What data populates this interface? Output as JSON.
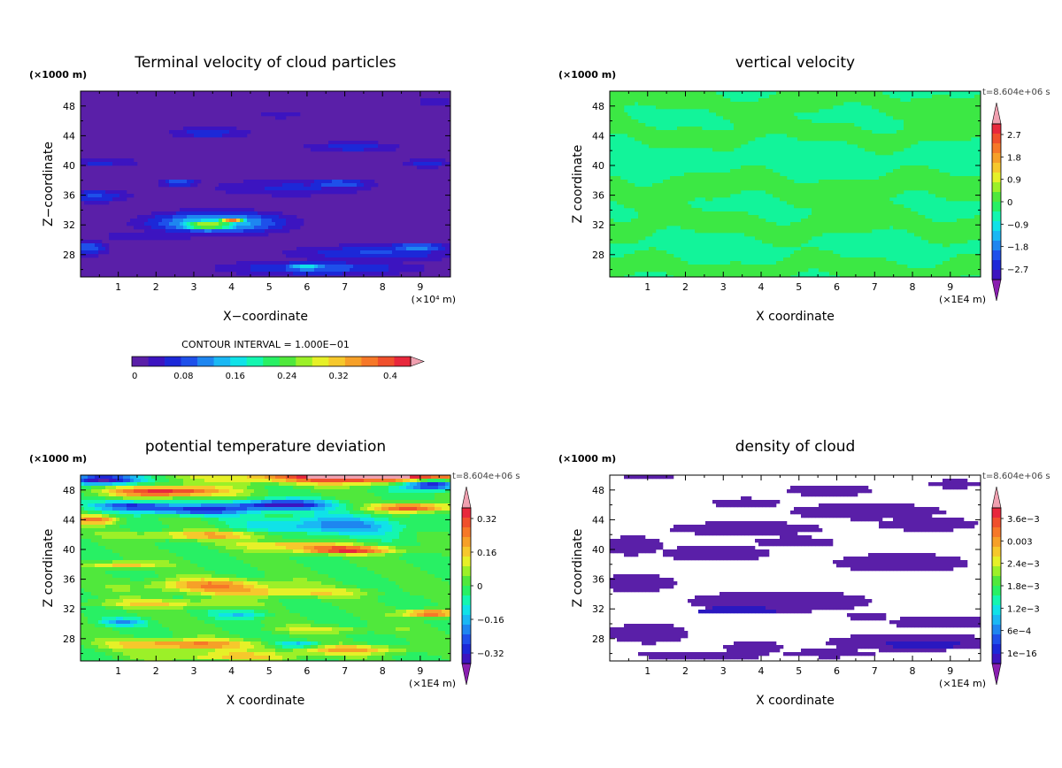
{
  "chart_data": [
    {
      "type": "heatmap",
      "title": "Terminal velocity of cloud particles",
      "xlabel": "X−coordinate",
      "ylabel": "Z−coordinate",
      "x_units": "(×10⁴ m)",
      "y_units": "(×1000 m)",
      "xlim": [
        0,
        9.8
      ],
      "ylim": [
        25,
        50
      ],
      "x_ticks": [
        1,
        2,
        3,
        4,
        5,
        6,
        7,
        8,
        9
      ],
      "y_ticks": [
        28,
        32,
        36,
        40,
        44,
        48
      ],
      "contour_interval_label": "CONTOUR INTERVAL = 1.000E−01",
      "colorbar_labels": [
        "0",
        "0.08",
        "0.16",
        "0.24",
        "0.32",
        "0.4"
      ],
      "colorbar_range": [
        0,
        0.4
      ],
      "background_value": 0,
      "features": [
        {
          "x": 3.6,
          "z": 32.3,
          "rx": 1.7,
          "rz": 1.4,
          "v": 0.15
        },
        {
          "x": 3.4,
          "z": 32.0,
          "rx": 0.9,
          "rz": 0.8,
          "v": 0.25
        },
        {
          "x": 4.0,
          "z": 32.6,
          "rx": 0.4,
          "rz": 0.4,
          "v": 0.33
        },
        {
          "x": 1.8,
          "z": 30.5,
          "rx": 1.5,
          "rz": 0.9,
          "v": 0.04
        },
        {
          "x": 7.8,
          "z": 28.2,
          "rx": 2.3,
          "rz": 1.1,
          "v": 0.07
        },
        {
          "x": 8.9,
          "z": 29.0,
          "rx": 0.8,
          "rz": 0.5,
          "v": 0.12
        },
        {
          "x": 6.3,
          "z": 26.2,
          "rx": 2.5,
          "rz": 1.0,
          "v": 0.08
        },
        {
          "x": 6.0,
          "z": 26.3,
          "rx": 0.6,
          "rz": 0.5,
          "v": 0.16
        },
        {
          "x": 0.2,
          "z": 28.9,
          "rx": 0.5,
          "rz": 1.0,
          "v": 0.09
        },
        {
          "x": 0.4,
          "z": 35.9,
          "rx": 0.9,
          "rz": 0.9,
          "v": 0.07
        },
        {
          "x": 5.6,
          "z": 37.0,
          "rx": 2.3,
          "rz": 1.2,
          "v": 0.05
        },
        {
          "x": 6.8,
          "z": 37.5,
          "rx": 0.9,
          "rz": 0.7,
          "v": 0.09
        },
        {
          "x": 2.6,
          "z": 37.7,
          "rx": 0.5,
          "rz": 0.5,
          "v": 0.09
        },
        {
          "x": 0.5,
          "z": 40.4,
          "rx": 1.2,
          "rz": 0.7,
          "v": 0.05
        },
        {
          "x": 9.2,
          "z": 40.3,
          "rx": 0.7,
          "rz": 0.6,
          "v": 0.06
        },
        {
          "x": 7.2,
          "z": 42.5,
          "rx": 1.3,
          "rz": 0.7,
          "v": 0.06
        },
        {
          "x": 3.4,
          "z": 44.4,
          "rx": 1.1,
          "rz": 0.8,
          "v": 0.06
        },
        {
          "x": 5.3,
          "z": 46.8,
          "rx": 0.7,
          "rz": 0.5,
          "v": 0.04
        },
        {
          "x": 9.4,
          "z": 48.6,
          "rx": 0.5,
          "rz": 0.5,
          "v": 0.05
        }
      ]
    },
    {
      "type": "heatmap",
      "title": "vertical velocity",
      "xlabel": "X coordinate",
      "ylabel": "Z coordinate",
      "x_units": "(×1E4 m)",
      "y_units": "(×1000 m)",
      "time_label": "t=8.604e+06 s",
      "xlim": [
        0,
        9.8
      ],
      "ylim": [
        25,
        50
      ],
      "x_ticks": [
        1,
        2,
        3,
        4,
        5,
        6,
        7,
        8,
        9
      ],
      "y_ticks": [
        28,
        32,
        36,
        40,
        44,
        48
      ],
      "colorbar_labels": [
        "2.7",
        "1.8",
        "0.9",
        "0",
        "−0.9",
        "−1.8",
        "−2.7"
      ],
      "colorbar_range": [
        -3.6,
        3.6
      ],
      "bands": [
        {
          "z": 48.5,
          "v": 0.4
        },
        {
          "z": 44.3,
          "v": 0.4
        },
        {
          "z": 37.0,
          "v": 0.6
        },
        {
          "z": 32.0,
          "v": 0.5
        },
        {
          "z": 26.0,
          "v": 0.45
        }
      ]
    },
    {
      "type": "heatmap",
      "title": "potential temperature deviation",
      "xlabel": "X coordinate",
      "ylabel": "Z coordinate",
      "x_units": "(×1E4 m)",
      "y_units": "(×1000 m)",
      "time_label": "t=8.604e+06 s",
      "xlim": [
        0,
        9.8
      ],
      "ylim": [
        25,
        50
      ],
      "x_ticks": [
        1,
        2,
        3,
        4,
        5,
        6,
        7,
        8,
        9
      ],
      "y_ticks": [
        28,
        32,
        36,
        40,
        44,
        48
      ],
      "colorbar_labels": [
        "0.32",
        "0.16",
        "0",
        "−0.16",
        "−0.32"
      ],
      "colorbar_range": [
        -0.48,
        0.48
      ],
      "features": [
        {
          "x": 7.8,
          "z": 49.8,
          "rx": 3.5,
          "rz": 0.9,
          "v": 0.5
        },
        {
          "x": 0.6,
          "z": 49.4,
          "rx": 0.9,
          "rz": 0.7,
          "v": -0.5
        },
        {
          "x": 9.3,
          "z": 48.8,
          "rx": 0.8,
          "rz": 0.8,
          "v": -0.5
        },
        {
          "x": 2.3,
          "z": 47.8,
          "rx": 1.5,
          "rz": 0.7,
          "v": 0.42
        },
        {
          "x": 5.3,
          "z": 46.0,
          "rx": 1.3,
          "rz": 0.7,
          "v": -0.42
        },
        {
          "x": 1.4,
          "z": 45.9,
          "rx": 1.0,
          "rz": 0.6,
          "v": -0.3
        },
        {
          "x": 3.0,
          "z": 45.3,
          "rx": 1.5,
          "rz": 0.7,
          "v": -0.32
        },
        {
          "x": 8.8,
          "z": 45.6,
          "rx": 1.0,
          "rz": 0.6,
          "v": 0.38
        },
        {
          "x": 0.4,
          "z": 44.0,
          "rx": 0.6,
          "rz": 0.6,
          "v": 0.3
        },
        {
          "x": 3.5,
          "z": 41.9,
          "rx": 2.0,
          "rz": 0.6,
          "v": 0.22
        },
        {
          "x": 6.6,
          "z": 43.2,
          "rx": 2.0,
          "rz": 1.4,
          "v": -0.24
        },
        {
          "x": 7.0,
          "z": 39.9,
          "rx": 1.4,
          "rz": 0.5,
          "v": 0.38
        },
        {
          "x": 5.6,
          "z": 40.6,
          "rx": 1.4,
          "rz": 0.5,
          "v": 0.22
        },
        {
          "x": 1.1,
          "z": 37.9,
          "rx": 0.9,
          "rz": 0.5,
          "v": 0.22
        },
        {
          "x": 3.5,
          "z": 35.2,
          "rx": 1.7,
          "rz": 0.9,
          "v": 0.25
        },
        {
          "x": 5.4,
          "z": 34.2,
          "rx": 2.2,
          "rz": 0.6,
          "v": 0.18
        },
        {
          "x": 2.2,
          "z": 32.7,
          "rx": 2.0,
          "rz": 0.6,
          "v": 0.16
        },
        {
          "x": 9.3,
          "z": 31.4,
          "rx": 0.7,
          "rz": 0.5,
          "v": 0.38
        },
        {
          "x": 4.3,
          "z": 31.3,
          "rx": 0.7,
          "rz": 0.6,
          "v": -0.16
        },
        {
          "x": 1.1,
          "z": 30.2,
          "rx": 0.6,
          "rz": 0.5,
          "v": -0.2
        },
        {
          "x": 6.5,
          "z": 29.2,
          "rx": 1.5,
          "rz": 0.5,
          "v": 0.12
        },
        {
          "x": 2.7,
          "z": 27.2,
          "rx": 1.8,
          "rz": 0.7,
          "v": 0.3
        },
        {
          "x": 7.1,
          "z": 26.5,
          "rx": 1.6,
          "rz": 0.6,
          "v": 0.22
        },
        {
          "x": 3.9,
          "z": 25.6,
          "rx": 2.0,
          "rz": 0.6,
          "v": 0.18
        },
        {
          "x": 5.8,
          "z": 27.2,
          "rx": 0.6,
          "rz": 0.5,
          "v": -0.2
        }
      ]
    },
    {
      "type": "heatmap",
      "title": "density of cloud",
      "xlabel": "X coordinate",
      "ylabel": "Z coordinate",
      "x_units": "(×1E4 m)",
      "y_units": "(×1000 m)",
      "time_label": "t=8.604e+06 s",
      "xlim": [
        0,
        9.8
      ],
      "ylim": [
        25,
        50
      ],
      "x_ticks": [
        1,
        2,
        3,
        4,
        5,
        6,
        7,
        8,
        9
      ],
      "y_ticks": [
        28,
        32,
        36,
        40,
        44,
        48
      ],
      "colorbar_labels": [
        "3.6e−3",
        "0.003",
        "2.4e−3",
        "1.8e−3",
        "1.2e−3",
        "6e−4",
        "1e−16"
      ],
      "colorbar_range": [
        0,
        0.0042
      ],
      "background_value": null,
      "features": [
        {
          "x": 1.0,
          "z": 49.9,
          "rx": 0.8,
          "rz": 0.4,
          "v": 1e-16
        },
        {
          "x": 9.1,
          "z": 48.8,
          "rx": 0.8,
          "rz": 0.6,
          "v": 1e-16
        },
        {
          "x": 5.8,
          "z": 48.0,
          "rx": 1.3,
          "rz": 0.9,
          "v": 1e-16
        },
        {
          "x": 3.6,
          "z": 46.2,
          "rx": 1.0,
          "rz": 0.8,
          "v": 1e-16
        },
        {
          "x": 6.8,
          "z": 45.1,
          "rx": 2.3,
          "rz": 1.2,
          "v": 1e-16
        },
        {
          "x": 3.6,
          "z": 42.8,
          "rx": 2.3,
          "rz": 1.0,
          "v": 1e-16
        },
        {
          "x": 8.4,
          "z": 43.4,
          "rx": 1.5,
          "rz": 1.0,
          "v": 1e-16
        },
        {
          "x": 0.6,
          "z": 40.5,
          "rx": 0.9,
          "rz": 1.4,
          "v": 1e-16
        },
        {
          "x": 2.8,
          "z": 39.5,
          "rx": 1.6,
          "rz": 1.2,
          "v": 1e-16
        },
        {
          "x": 4.9,
          "z": 41.0,
          "rx": 1.2,
          "rz": 0.8,
          "v": 1e-16
        },
        {
          "x": 7.7,
          "z": 38.2,
          "rx": 2.0,
          "rz": 1.4,
          "v": 1e-16
        },
        {
          "x": 0.7,
          "z": 35.5,
          "rx": 1.2,
          "rz": 1.3,
          "v": 1e-16
        },
        {
          "x": 4.5,
          "z": 33.0,
          "rx": 2.7,
          "rz": 1.6,
          "v": 1e-16
        },
        {
          "x": 3.4,
          "z": 31.8,
          "rx": 1.2,
          "rz": 0.5,
          "v": 0.0006
        },
        {
          "x": 8.8,
          "z": 30.2,
          "rx": 1.6,
          "rz": 0.9,
          "v": 1e-16
        },
        {
          "x": 6.8,
          "z": 31.0,
          "rx": 0.6,
          "rz": 0.6,
          "v": 1e-16
        },
        {
          "x": 1.0,
          "z": 28.7,
          "rx": 1.2,
          "rz": 1.5,
          "v": 1e-16
        },
        {
          "x": 8.0,
          "z": 27.5,
          "rx": 2.6,
          "rz": 1.3,
          "v": 1e-16
        },
        {
          "x": 8.3,
          "z": 27.2,
          "rx": 1.2,
          "rz": 0.5,
          "v": 0.0006
        },
        {
          "x": 3.8,
          "z": 26.8,
          "rx": 0.9,
          "rz": 0.9,
          "v": 1e-16
        },
        {
          "x": 2.5,
          "z": 25.8,
          "rx": 2.0,
          "rz": 0.6,
          "v": 1e-16
        },
        {
          "x": 5.8,
          "z": 26.0,
          "rx": 1.4,
          "rz": 0.6,
          "v": 1e-16
        }
      ]
    }
  ]
}
